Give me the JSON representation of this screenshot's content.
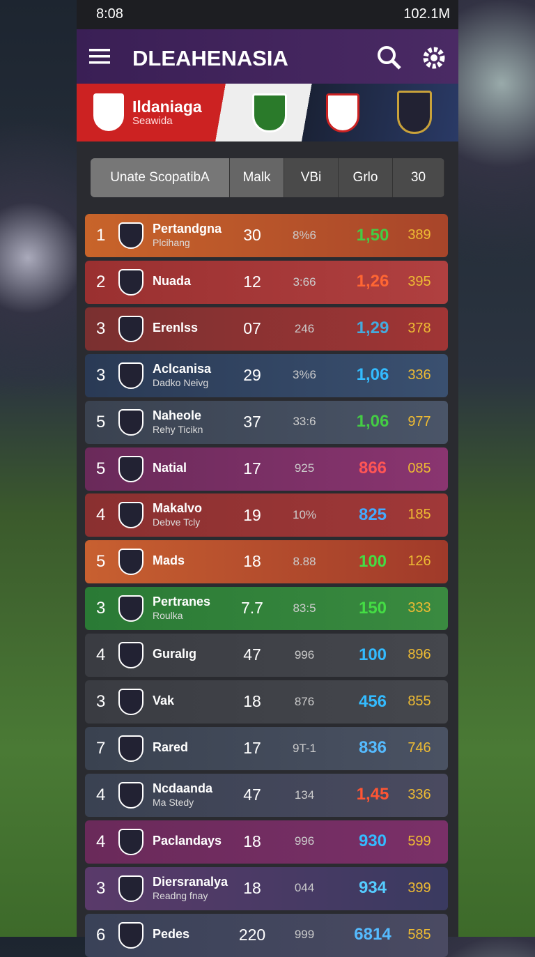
{
  "status": {
    "time": "8:08",
    "right": "102.1M"
  },
  "header": {
    "title": "DLEAHENASIA"
  },
  "banner": {
    "title": "Ildaniaga",
    "subtitle": "Seawida"
  },
  "tabs": [
    "Unate ScopatibA",
    "Malk",
    "VBi",
    "Grlo",
    "30"
  ],
  "table": {
    "rows": [
      {
        "rank": "1",
        "name": "Pertandgna",
        "sub": "Plcihang",
        "cells": [
          "30",
          "8%6",
          "1,50",
          "389"
        ]
      },
      {
        "rank": "2",
        "name": "Nuada",
        "cells": [
          "12",
          "3:66",
          "1,26",
          "395"
        ]
      },
      {
        "rank": "3",
        "name": "Erenlss",
        "cells": [
          "07",
          "246",
          "1,29",
          "378"
        ]
      },
      {
        "rank": "3",
        "name": "Aclcanisa",
        "sub": "Dadko Neivg",
        "cells": [
          "29",
          "3%6",
          "1,06",
          "336"
        ]
      },
      {
        "rank": "5",
        "name": "Naheole",
        "sub": "Rehy Ticikn",
        "cells": [
          "37",
          "33:6",
          "1,06",
          "977"
        ]
      },
      {
        "rank": "5",
        "name": "Natial",
        "cells": [
          "17",
          "925",
          "866",
          "085"
        ]
      },
      {
        "rank": "4",
        "name": "Makalvo",
        "sub": "Debve Tcly",
        "cells": [
          "19",
          "10%",
          "825",
          "185"
        ]
      },
      {
        "rank": "5",
        "name": "Mads",
        "cells": [
          "18",
          "8.88",
          "100",
          "126"
        ]
      },
      {
        "rank": "3",
        "name": "Pertranes",
        "sub": "Roulka",
        "cells": [
          "7.7",
          "83:5",
          "150",
          "333"
        ]
      },
      {
        "rank": "4",
        "name": "Guralıg",
        "cells": [
          "47",
          "996",
          "100",
          "896"
        ]
      },
      {
        "rank": "3",
        "name": "Vak",
        "cells": [
          "18",
          "876",
          "456",
          "855"
        ]
      },
      {
        "rank": "7",
        "name": "Rared",
        "cells": [
          "17",
          "9T-1",
          "836",
          "746"
        ]
      },
      {
        "rank": "4",
        "name": "Ncdaanda",
        "sub": "Ma Stedy",
        "cells": [
          "47",
          "134",
          "1,45",
          "336"
        ]
      },
      {
        "rank": "4",
        "name": "Paclandays",
        "cells": [
          "18",
          "996",
          "930",
          "599"
        ]
      },
      {
        "rank": "3",
        "name": "Diersranalya",
        "sub": "Readng fnay",
        "cells": [
          "18",
          "044",
          "934",
          "399"
        ]
      },
      {
        "rank": "6",
        "name": "Pedes",
        "cells": [
          "220",
          "999",
          "6814",
          "585"
        ]
      }
    ]
  }
}
